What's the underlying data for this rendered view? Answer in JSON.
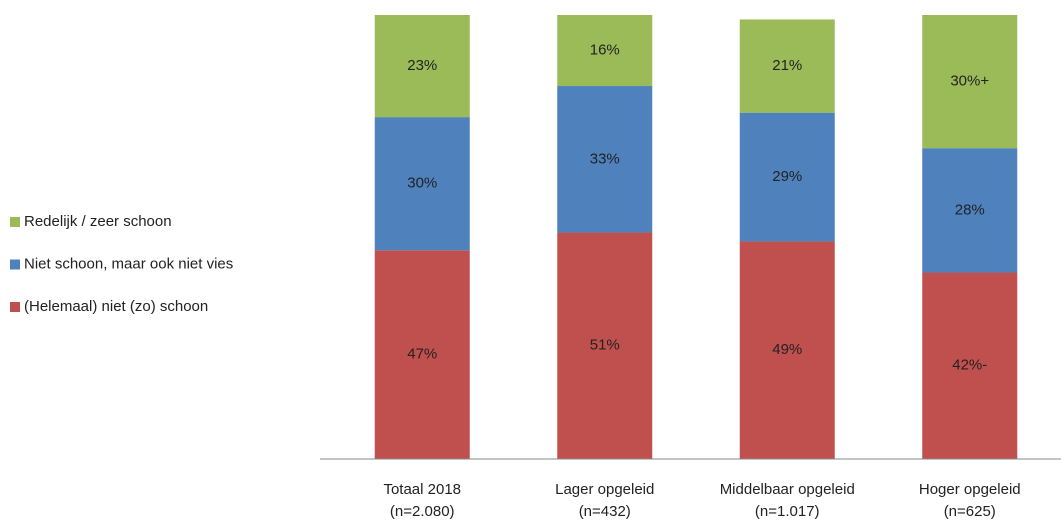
{
  "chart_data": {
    "type": "stacked_bar",
    "categories": [
      "Totaal 2018",
      "Lager opgeleid",
      "Middelbaar opgeleid",
      "Hoger opgeleid"
    ],
    "category_notes": [
      "(n=2.080)",
      "(n=432)",
      "(n=1.017)",
      "(n=625)"
    ],
    "series": [
      {
        "name": "(Helemaal) niet (zo) schoon",
        "color": "#c0504d",
        "values": [
          47,
          51,
          49,
          42
        ],
        "value_labels": [
          "47%",
          "51%",
          "49%",
          "42%-"
        ]
      },
      {
        "name": "Niet schoon, maar ook niet vies",
        "color": "#4f81bd",
        "values": [
          30,
          33,
          29,
          28
        ],
        "value_labels": [
          "30%",
          "33%",
          "29%",
          "28%"
        ]
      },
      {
        "name": "Redelijk / zeer schoon",
        "color": "#9bbb59",
        "values": [
          23,
          16,
          21,
          30
        ],
        "value_labels": [
          "23%",
          "16%",
          "21%",
          "30%+"
        ]
      }
    ],
    "ylim": [
      0,
      100
    ]
  }
}
